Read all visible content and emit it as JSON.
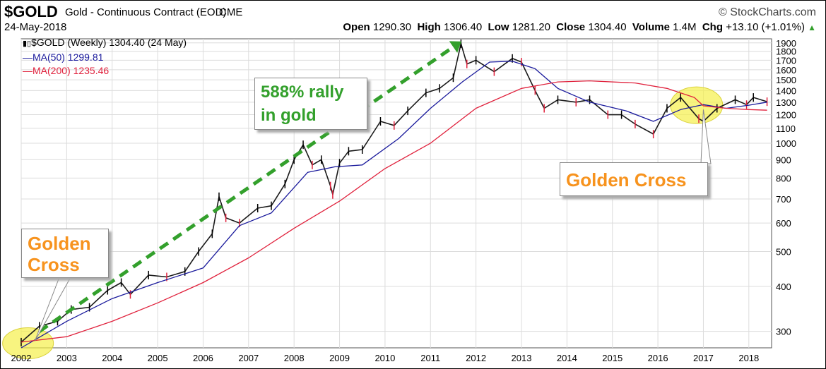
{
  "header": {
    "symbol": "$GOLD",
    "name": "Gold - Continuous Contract (EOD)",
    "exchange": "CME",
    "brand": "© StockCharts.com",
    "date": "24-May-2018",
    "open_label": "Open",
    "open_value": "1290.30",
    "high_label": "High",
    "high_value": "1306.40",
    "low_label": "Low",
    "low_value": "1281.20",
    "close_label": "Close",
    "close_value": "1304.40",
    "volume_label": "Volume",
    "volume_value": "1.4M",
    "chg_label": "Chg",
    "chg_value": "+13.10 (+1.01%)"
  },
  "legend": {
    "price": "$GOLD (Weekly) 1304.40 (24 May)",
    "ma50": "MA(50) 1299.81",
    "ma200": "MA(200) 1235.46"
  },
  "annotations": {
    "rally_line1": "588% rally",
    "rally_line2": "in gold",
    "golden_cross_right": "Golden Cross",
    "golden_cross_left_line1": "Golden",
    "golden_cross_left_line2": "Cross"
  },
  "colors": {
    "price_up": "#000000",
    "price_down": "#e0213c",
    "ma50": "#1a1a9c",
    "ma200": "#e0213c",
    "rally_arrow": "#33a02c",
    "highlight": "#f5f04a",
    "callout_orange": "#f7931e",
    "grid": "#dcdcdc"
  },
  "chart_data": {
    "type": "line",
    "title": "$GOLD (Weekly)",
    "scale": "log",
    "ylim": [
      270,
      1950
    ],
    "xlim": [
      2002.0,
      2018.5
    ],
    "grid": true,
    "legend_position": "top-left",
    "y_ticks": [
      300,
      400,
      500,
      600,
      700,
      800,
      900,
      1000,
      1100,
      1200,
      1300,
      1400,
      1500,
      1600,
      1700,
      1800,
      1900
    ],
    "x_ticks": [
      "2002",
      "2003",
      "2004",
      "2005",
      "2006",
      "2007",
      "2008",
      "2009",
      "2010",
      "2011",
      "2012",
      "2013",
      "2014",
      "2015",
      "2016",
      "2017",
      "2018"
    ],
    "series": [
      {
        "name": "$GOLD (Weekly)",
        "x": [
          2002.0,
          2002.4,
          2002.8,
          2003.1,
          2003.5,
          2003.9,
          2004.2,
          2004.4,
          2004.8,
          2005.2,
          2005.6,
          2005.9,
          2006.2,
          2006.35,
          2006.5,
          2006.8,
          2007.2,
          2007.5,
          2007.8,
          2008.0,
          2008.2,
          2008.4,
          2008.6,
          2008.8,
          2008.85,
          2009.0,
          2009.2,
          2009.5,
          2009.9,
          2010.2,
          2010.5,
          2010.9,
          2011.2,
          2011.5,
          2011.67,
          2011.8,
          2012.0,
          2012.4,
          2012.8,
          2013.0,
          2013.3,
          2013.5,
          2013.8,
          2014.2,
          2014.5,
          2014.9,
          2015.2,
          2015.5,
          2015.9,
          2016.2,
          2016.5,
          2016.9,
          2017.0,
          2017.3,
          2017.7,
          2017.95,
          2018.1,
          2018.4
        ],
        "values": [
          280,
          310,
          320,
          345,
          350,
          390,
          410,
          380,
          430,
          425,
          440,
          500,
          560,
          710,
          620,
          600,
          660,
          670,
          770,
          900,
          990,
          870,
          900,
          760,
          720,
          880,
          950,
          960,
          1150,
          1120,
          1230,
          1380,
          1420,
          1520,
          1890,
          1660,
          1700,
          1580,
          1720,
          1680,
          1400,
          1250,
          1320,
          1300,
          1320,
          1200,
          1200,
          1130,
          1060,
          1250,
          1340,
          1170,
          1150,
          1250,
          1320,
          1280,
          1340,
          1304
        ]
      },
      {
        "name": "MA(50)",
        "x": [
          2002.0,
          2003.0,
          2004.0,
          2005.0,
          2006.0,
          2006.8,
          2007.5,
          2008.3,
          2008.9,
          2009.5,
          2010.3,
          2011.0,
          2011.7,
          2012.3,
          2012.8,
          2013.3,
          2013.8,
          2014.5,
          2015.3,
          2015.9,
          2016.5,
          2017.0,
          2017.5,
          2018.0,
          2018.4
        ],
        "values": [
          270,
          320,
          370,
          410,
          450,
          590,
          640,
          830,
          860,
          870,
          1030,
          1250,
          1480,
          1680,
          1690,
          1610,
          1420,
          1300,
          1230,
          1150,
          1240,
          1280,
          1250,
          1275,
          1300
        ]
      },
      {
        "name": "MA(200)",
        "x": [
          2002.0,
          2003.0,
          2004.0,
          2005.0,
          2006.0,
          2007.0,
          2008.0,
          2009.0,
          2010.0,
          2011.0,
          2012.0,
          2013.0,
          2013.8,
          2014.5,
          2015.5,
          2016.2,
          2016.8,
          2017.0,
          2017.5,
          2018.0,
          2018.4
        ],
        "values": [
          280,
          290,
          320,
          360,
          410,
          480,
          580,
          690,
          850,
          1000,
          1250,
          1420,
          1480,
          1490,
          1470,
          1420,
          1340,
          1270,
          1250,
          1240,
          1235
        ]
      }
    ]
  }
}
